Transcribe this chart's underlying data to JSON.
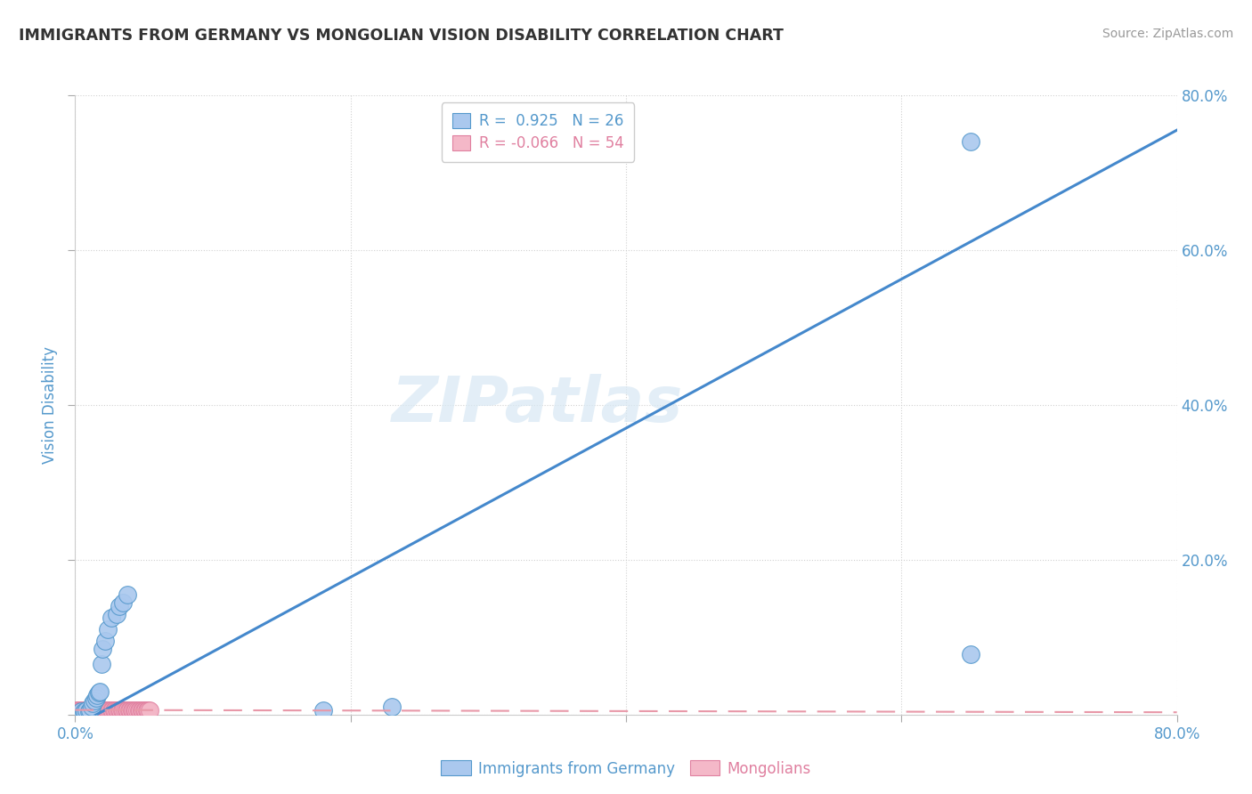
{
  "title": "IMMIGRANTS FROM GERMANY VS MONGOLIAN VISION DISABILITY CORRELATION CHART",
  "source": "Source: ZipAtlas.com",
  "ylabel": "Vision Disability",
  "xmax": 0.8,
  "ymax": 0.8,
  "ytick_values": [
    0.0,
    0.2,
    0.4,
    0.6,
    0.8
  ],
  "xtick_values": [
    0.0,
    0.2,
    0.4,
    0.6,
    0.8
  ],
  "blue_color": "#aac8ee",
  "blue_edge_color": "#5599cc",
  "pink_color": "#f4b8c8",
  "pink_edge_color": "#e080a0",
  "blue_line_color": "#4488cc",
  "pink_line_color": "#e898a8",
  "text_color": "#5599cc",
  "grid_color": "#cccccc",
  "watermark": "ZIPatlas",
  "blue_dots_x": [
    0.004,
    0.006,
    0.007,
    0.008,
    0.01,
    0.011,
    0.012,
    0.013,
    0.014,
    0.015,
    0.016,
    0.017,
    0.018,
    0.019,
    0.02,
    0.022,
    0.024,
    0.026,
    0.03,
    0.032,
    0.035,
    0.038,
    0.18,
    0.23,
    0.65,
    0.65
  ],
  "blue_dots_y": [
    0.004,
    0.003,
    0.004,
    0.005,
    0.004,
    0.006,
    0.01,
    0.015,
    0.018,
    0.022,
    0.025,
    0.028,
    0.03,
    0.065,
    0.085,
    0.095,
    0.11,
    0.125,
    0.13,
    0.14,
    0.145,
    0.155,
    0.005,
    0.01,
    0.078,
    0.74
  ],
  "pink_dots_x": [
    0.001,
    0.002,
    0.003,
    0.004,
    0.005,
    0.006,
    0.007,
    0.008,
    0.009,
    0.01,
    0.011,
    0.012,
    0.013,
    0.014,
    0.015,
    0.016,
    0.017,
    0.018,
    0.019,
    0.02,
    0.021,
    0.022,
    0.023,
    0.024,
    0.025,
    0.026,
    0.027,
    0.028,
    0.029,
    0.03,
    0.031,
    0.032,
    0.033,
    0.034,
    0.035,
    0.036,
    0.037,
    0.038,
    0.039,
    0.04,
    0.041,
    0.042,
    0.043,
    0.044,
    0.045,
    0.046,
    0.047,
    0.048,
    0.049,
    0.05,
    0.051,
    0.052,
    0.053,
    0.054
  ],
  "pink_dots_y": [
    0.005,
    0.005,
    0.006,
    0.005,
    0.005,
    0.006,
    0.005,
    0.006,
    0.005,
    0.006,
    0.005,
    0.006,
    0.005,
    0.006,
    0.005,
    0.006,
    0.005,
    0.006,
    0.005,
    0.006,
    0.005,
    0.006,
    0.005,
    0.006,
    0.005,
    0.006,
    0.005,
    0.006,
    0.005,
    0.006,
    0.005,
    0.006,
    0.005,
    0.006,
    0.005,
    0.006,
    0.005,
    0.006,
    0.005,
    0.006,
    0.005,
    0.006,
    0.005,
    0.006,
    0.005,
    0.006,
    0.005,
    0.006,
    0.005,
    0.006,
    0.005,
    0.006,
    0.005,
    0.006
  ],
  "blue_line_x": [
    0.0,
    0.8
  ],
  "blue_line_y": [
    -0.015,
    0.755
  ],
  "pink_line_x": [
    0.0,
    0.8
  ],
  "pink_line_y": [
    0.006,
    0.003
  ],
  "legend_label1": "R =  0.925   N = 26",
  "legend_label2": "R = -0.066   N = 54",
  "bottom_label1": "Immigrants from Germany",
  "bottom_label2": "Mongolians"
}
